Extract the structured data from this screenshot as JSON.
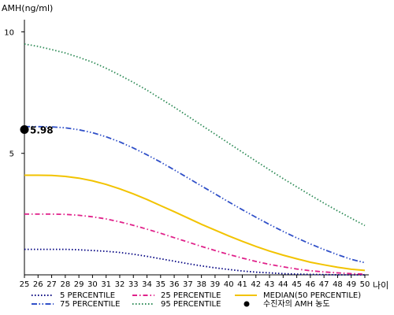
{
  "chart_data": {
    "type": "line",
    "ylabel": "AMH(ng/ml)",
    "xlabel": "나이",
    "xlim": [
      25,
      50
    ],
    "ylim": [
      0,
      10.5
    ],
    "x": [
      25,
      26,
      27,
      28,
      29,
      30,
      31,
      32,
      33,
      34,
      35,
      36,
      37,
      38,
      39,
      40,
      41,
      42,
      43,
      44,
      45,
      46,
      47,
      48,
      49,
      50
    ],
    "x_tick_labels": [
      "25",
      "26",
      "27",
      "28",
      "29",
      "30",
      "31",
      "32",
      "33",
      "34",
      "35",
      "36",
      "37",
      "38",
      "39",
      "40",
      "41",
      "42",
      "43",
      "44",
      "45",
      "46",
      "47",
      "48",
      "49",
      "50"
    ],
    "y_ticks": [
      5,
      10
    ],
    "y_tick_labels": [
      "5",
      "10"
    ],
    "series": [
      {
        "name": "5 PERCENTILE",
        "color": "#000080",
        "dash": "dot",
        "values": [
          1.05,
          1.05,
          1.05,
          1.05,
          1.03,
          1.0,
          0.97,
          0.92,
          0.85,
          0.76,
          0.66,
          0.56,
          0.46,
          0.37,
          0.29,
          0.22,
          0.16,
          0.11,
          0.08,
          0.05,
          0.03,
          0.02,
          0.01,
          0.0,
          0.0,
          0.0
        ]
      },
      {
        "name": "25 PERCENTILE",
        "color": "#e0218a",
        "dash": "dashdot",
        "values": [
          2.5,
          2.5,
          2.5,
          2.49,
          2.45,
          2.39,
          2.3,
          2.18,
          2.04,
          1.88,
          1.71,
          1.53,
          1.35,
          1.17,
          1.0,
          0.84,
          0.69,
          0.55,
          0.43,
          0.33,
          0.24,
          0.17,
          0.12,
          0.08,
          0.05,
          0.03
        ]
      },
      {
        "name": "MEDIAN(50 PERCENTILE)",
        "color": "#f2c300",
        "dash": "solid",
        "values": [
          4.1,
          4.1,
          4.09,
          4.05,
          3.98,
          3.87,
          3.72,
          3.54,
          3.33,
          3.1,
          2.85,
          2.6,
          2.34,
          2.08,
          1.84,
          1.6,
          1.38,
          1.17,
          0.98,
          0.81,
          0.66,
          0.52,
          0.41,
          0.31,
          0.23,
          0.18
        ]
      },
      {
        "name": "75 PERCENTILE",
        "color": "#3050c8",
        "dash": "dashdotdot",
        "values": [
          6.1,
          6.1,
          6.09,
          6.05,
          5.97,
          5.85,
          5.68,
          5.47,
          5.22,
          4.94,
          4.64,
          4.32,
          3.99,
          3.66,
          3.33,
          3.0,
          2.68,
          2.37,
          2.07,
          1.79,
          1.52,
          1.27,
          1.04,
          0.83,
          0.64,
          0.5
        ]
      },
      {
        "name": "95 PERCENTILE",
        "color": "#2e8b57",
        "dash": "dot",
        "values": [
          9.5,
          9.4,
          9.27,
          9.13,
          8.95,
          8.75,
          8.5,
          8.22,
          7.92,
          7.6,
          7.25,
          6.9,
          6.53,
          6.16,
          5.79,
          5.42,
          5.05,
          4.68,
          4.32,
          3.96,
          3.62,
          3.28,
          2.95,
          2.63,
          2.33,
          2.03
        ]
      }
    ],
    "marker": {
      "name": "수진자의 AMH 농도",
      "x": 25,
      "y": 5.98,
      "label": "5.98",
      "color": "#000000"
    },
    "legend_placement": "bottom",
    "grid": false
  }
}
